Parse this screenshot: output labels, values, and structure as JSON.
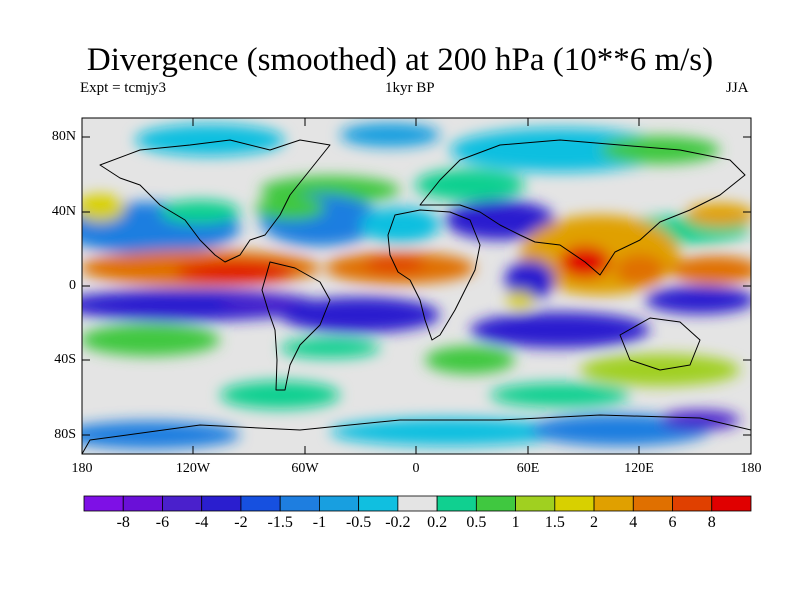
{
  "title": "Divergence (smoothed) at 200 hPa (10**6 m/s)",
  "expt_label": "Expt = tcmjy3",
  "period_label": "1kyr BP",
  "season_label": "JJA",
  "lat_labels": [
    "80N",
    "40N",
    "0",
    "40S",
    "80S"
  ],
  "lon_labels": [
    "180",
    "120W",
    "60W",
    "0",
    "60E",
    "120E",
    "180"
  ],
  "colorbar": {
    "colors": [
      "#7e10e6",
      "#6a10d8",
      "#4a20cc",
      "#2a1ecf",
      "#1650e0",
      "#1e7ee0",
      "#189fe0",
      "#10bfe0",
      "#e4e4e4",
      "#10d090",
      "#40c840",
      "#a0d020",
      "#d8d000",
      "#e0a000",
      "#e07000",
      "#e04000",
      "#e00000"
    ],
    "labels": [
      "-8",
      "-6",
      "-4",
      "-2",
      "-1.5",
      "-1",
      "-0.5",
      "-0.2",
      "0.2",
      "0.5",
      "1",
      "1.5",
      "2",
      "4",
      "6",
      "8"
    ]
  }
}
